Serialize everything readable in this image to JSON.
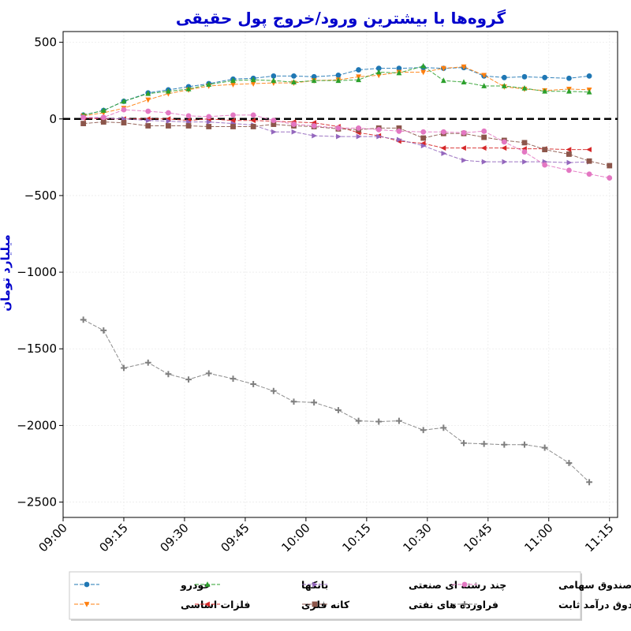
{
  "chart_data": {
    "type": "line",
    "title": "گروه‌ها با بیشترین ورود/خروج پول حقیقی",
    "xlabel": "",
    "ylabel": "میلیارد تومان",
    "xlim": [
      "09:00",
      "11:17"
    ],
    "ylim": [
      -2600,
      570
    ],
    "x_ticks": [
      "09:00",
      "09:15",
      "09:30",
      "09:45",
      "10:00",
      "10:15",
      "10:30",
      "10:45",
      "11:00",
      "11:15"
    ],
    "y_ticks": [
      500,
      0,
      -500,
      -1000,
      -1500,
      -2000,
      -2500
    ],
    "zero_line": 0,
    "grid": true,
    "legend_position": "bottom-center",
    "x": [
      "09:05",
      "09:10",
      "09:15",
      "09:21",
      "09:26",
      "09:31",
      "09:36",
      "09:42",
      "09:47",
      "09:52",
      "09:57",
      "10:02",
      "10:08",
      "10:13",
      "10:18",
      "10:23",
      "10:29",
      "10:34",
      "10:39",
      "10:44",
      "10:49",
      "10:54",
      "10:59",
      "11:05",
      "11:10",
      "11:15"
    ],
    "series": [
      {
        "name": "خودرو",
        "color": "#1f77b4",
        "marker": "circle",
        "values": [
          25,
          55,
          115,
          170,
          190,
          210,
          230,
          260,
          265,
          280,
          280,
          275,
          285,
          320,
          330,
          330,
          335,
          330,
          335,
          280,
          270,
          275,
          270,
          265,
          280,
          null
        ]
      },
      {
        "name": "فلزات اساسی",
        "color": "#ff7f0e",
        "marker": "triangle-down",
        "values": [
          20,
          40,
          70,
          125,
          165,
          190,
          215,
          225,
          230,
          235,
          235,
          250,
          255,
          275,
          285,
          305,
          305,
          330,
          340,
          285,
          210,
          195,
          185,
          195,
          190,
          null
        ]
      },
      {
        "name": "بانکها",
        "color": "#2ca02c",
        "marker": "triangle-up",
        "values": [
          25,
          55,
          115,
          165,
          180,
          195,
          225,
          250,
          255,
          250,
          240,
          250,
          250,
          255,
          305,
          300,
          345,
          250,
          240,
          215,
          215,
          200,
          180,
          180,
          175,
          null
        ]
      },
      {
        "name": "کانه فلزی",
        "color": "#d62728",
        "marker": "triangle-left",
        "values": [
          5,
          0,
          0,
          0,
          0,
          -10,
          0,
          -10,
          -10,
          -15,
          -20,
          -25,
          -50,
          -90,
          -110,
          -145,
          -160,
          -190,
          -190,
          -190,
          -190,
          -195,
          -195,
          -200,
          -200,
          null
        ]
      },
      {
        "name": "چند رشته ای صنعتی",
        "color": "#9467bd",
        "marker": "triangle-right",
        "values": [
          10,
          5,
          0,
          -10,
          -15,
          -20,
          -20,
          -30,
          -40,
          -85,
          -85,
          -110,
          -115,
          -115,
          -115,
          -135,
          -175,
          -225,
          -270,
          -280,
          -280,
          -280,
          -280,
          -285,
          -280,
          null
        ]
      },
      {
        "name": "فراورده های نفتی",
        "color": "#8c564b",
        "marker": "square",
        "values": [
          -30,
          -20,
          -25,
          -45,
          -45,
          -45,
          -50,
          -50,
          -50,
          -35,
          -45,
          -50,
          -65,
          -70,
          -60,
          -60,
          -125,
          -95,
          -95,
          -120,
          -140,
          -155,
          -200,
          -230,
          -275,
          -305
        ]
      },
      {
        "name": "صندوق سهامی",
        "color": "#e377c2",
        "marker": "circle",
        "values": [
          10,
          10,
          60,
          50,
          40,
          20,
          15,
          25,
          25,
          -10,
          -35,
          -45,
          -60,
          -60,
          -70,
          -80,
          -85,
          -85,
          -90,
          -80,
          -150,
          -215,
          -300,
          -335,
          -360,
          -385
        ]
      },
      {
        "name": "صندوق درآمد ثابت",
        "color": "#7f7f7f",
        "marker": "plus",
        "values": [
          -1310,
          -1380,
          -1625,
          -1590,
          -1665,
          -1700,
          -1660,
          -1695,
          -1730,
          -1775,
          -1845,
          -1850,
          -1900,
          -1970,
          -1975,
          -1970,
          -2030,
          -2015,
          -2115,
          -2120,
          -2125,
          -2125,
          -2145,
          -2245,
          -2370,
          null
        ]
      }
    ]
  }
}
